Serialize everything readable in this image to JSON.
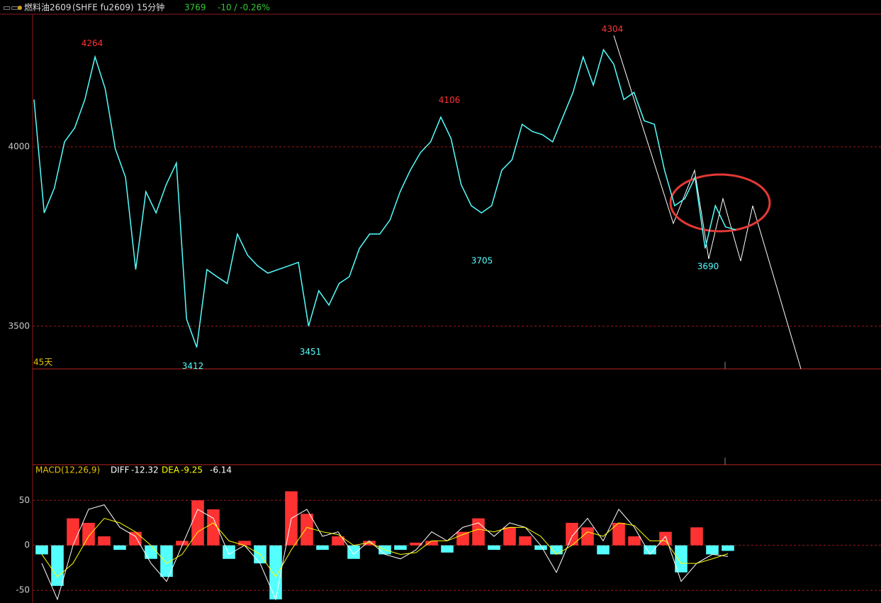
{
  "header": {
    "symbol": "燃料油2609",
    "code": "(SHFE fu2609)",
    "period": "15分钟",
    "change": "-10 / -0.26%"
  },
  "chart_data": [
    {
      "type": "line",
      "color": "#54ffff",
      "values": [
        4132,
        3816,
        3885,
        4014,
        4053,
        4132,
        4251,
        4162,
        3994,
        3915,
        3658,
        3875,
        3816,
        3895,
        3955,
        3520,
        3441,
        3658,
        3638,
        3619,
        3757,
        3698,
        3668,
        3648,
        3658,
        3668,
        3678,
        3500,
        3599,
        3559,
        3619,
        3638,
        3717,
        3757,
        3757,
        3796,
        3875,
        3935,
        3984,
        4014,
        4083,
        4024,
        3895,
        3836,
        3816,
        3836,
        3935,
        3964,
        4063,
        4043,
        4034,
        4014,
        4083,
        4152,
        4251,
        4172,
        4271,
        4231,
        4132,
        4152,
        4073,
        4063,
        3935,
        3836,
        3856,
        3915,
        3717,
        3836,
        3777,
        3769
      ],
      "ylim": [
        3381,
        4370
      ],
      "yticks": [
        3500,
        4000
      ],
      "grid": true,
      "annotations": [
        4264,
        4106,
        4304,
        3412,
        3451,
        3705,
        3690
      ],
      "range_label": "45天"
    },
    {
      "type": "macd",
      "title": "MACD(12,26,9)",
      "histogram": {
        "values": [
          -10,
          -45,
          30,
          25,
          10,
          -5,
          15,
          -15,
          -35,
          5,
          50,
          40,
          -15,
          5,
          -20,
          -60,
          60,
          35,
          -5,
          10,
          -15,
          5,
          -10,
          -5,
          3,
          5,
          -8,
          15,
          30,
          -5,
          20,
          10,
          -5,
          -10,
          25,
          20,
          -10,
          25,
          10,
          -10,
          15,
          -30,
          20,
          -10,
          -6.14
        ],
        "up_color": "#ff3232",
        "down_color": "#54ffff"
      },
      "series": [
        {
          "name": "DIFF",
          "color": "#ffffff",
          "values": [
            -20,
            -60,
            0,
            40,
            45,
            20,
            10,
            -20,
            -40,
            0,
            40,
            30,
            -10,
            0,
            -20,
            -60,
            30,
            40,
            10,
            15,
            -10,
            5,
            -10,
            -15,
            -5,
            15,
            5,
            20,
            25,
            10,
            25,
            20,
            0,
            -30,
            10,
            30,
            5,
            40,
            20,
            -10,
            10,
            -40,
            -20,
            -10,
            -12.32
          ]
        },
        {
          "name": "DEA",
          "color": "#ffff00",
          "values": [
            -10,
            -35,
            -20,
            10,
            30,
            25,
            15,
            0,
            -20,
            -10,
            15,
            25,
            5,
            0,
            -10,
            -35,
            -5,
            20,
            15,
            12,
            0,
            3,
            -5,
            -10,
            -8,
            5,
            5,
            12,
            18,
            15,
            20,
            20,
            10,
            -10,
            0,
            15,
            10,
            25,
            22,
            5,
            5,
            -20,
            -20,
            -15,
            -9.25
          ]
        }
      ],
      "ylim": [
        -64,
        88
      ],
      "yticks": [
        -50,
        0,
        50
      ],
      "grid": true
    }
  ]
}
